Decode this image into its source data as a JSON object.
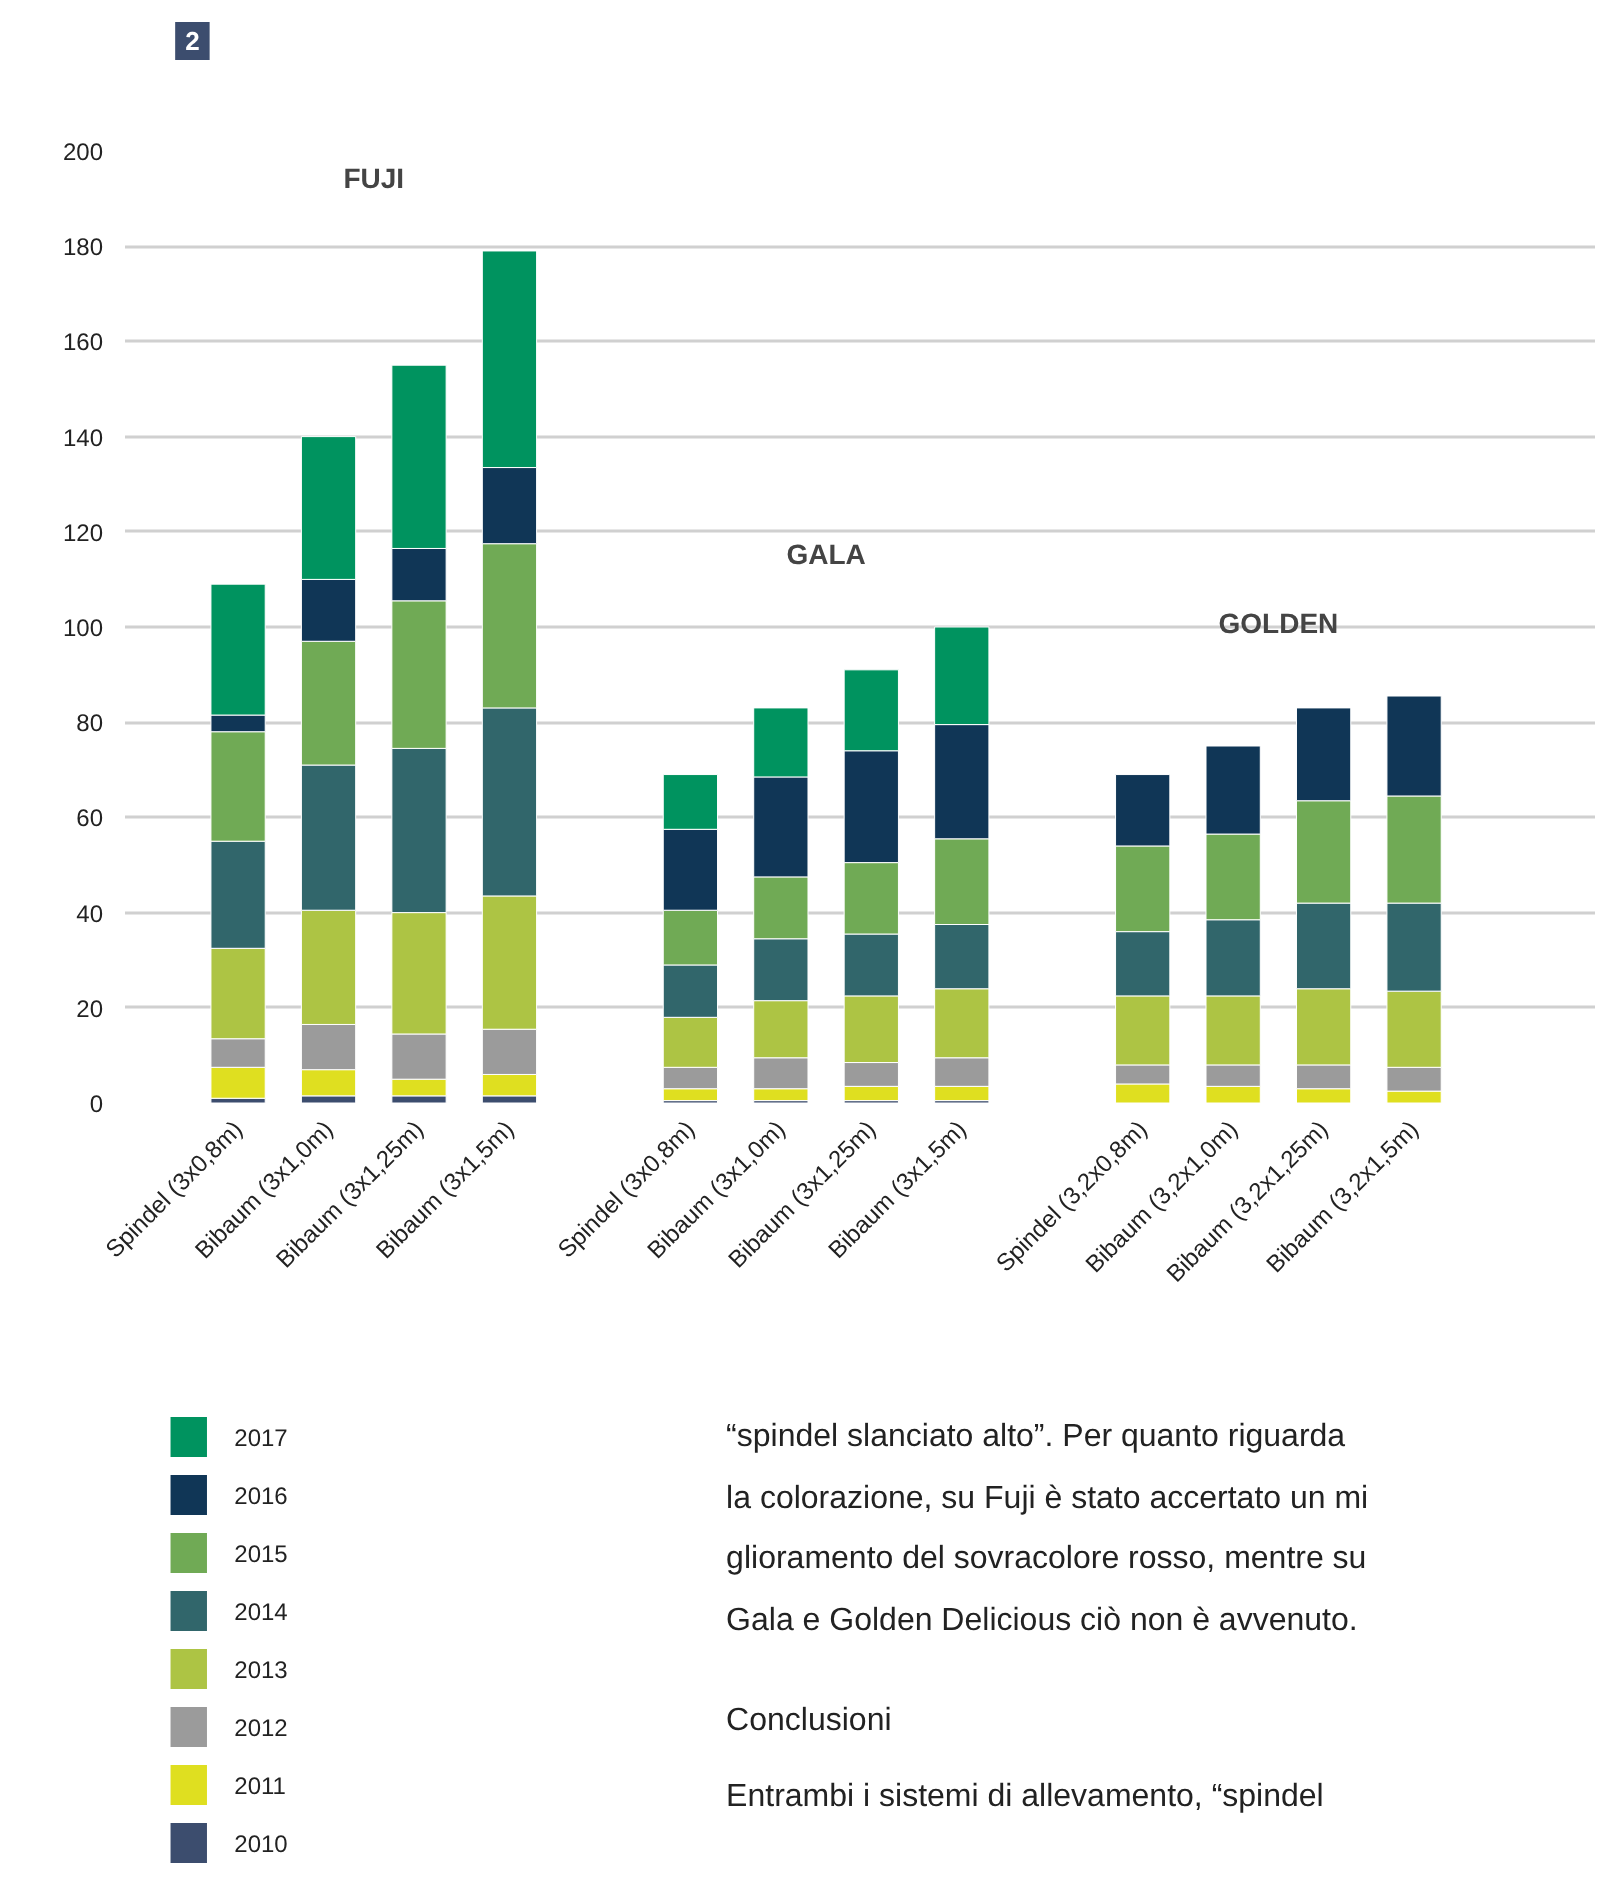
{
  "chart_data": {
    "type": "bar",
    "stacked": true,
    "title": "2",
    "categories": [
      "Spindel (3x0,8m)",
      "Bibaum (3x1,0m)",
      "Bibaum (3x1,25m)",
      "Bibaum (3x1,5m)",
      "Spindel (3x0,8m)",
      "Bibaum (3x1,0m)",
      "Bibaum (3x1,25m)",
      "Bibaum (3x1,5m)",
      "Spindel (3,2x0,8m)",
      "Bibaum (3,2x1,0m)",
      "Bibaum (3,2x1,25m)",
      "Bibaum (3,2x1,5m)"
    ],
    "series": [
      {
        "name": "2010",
        "color": "#3c4d6e",
        "values": [
          1,
          1.5,
          1.5,
          1.5,
          0.5,
          0.5,
          0.5,
          0.5,
          null,
          null,
          null,
          null
        ]
      },
      {
        "name": "2011",
        "color": "#dfdf20",
        "values": [
          6.5,
          5.5,
          3.5,
          4.5,
          2.5,
          2.5,
          3,
          3,
          4,
          3.5,
          3,
          2.5
        ]
      },
      {
        "name": "2012",
        "color": "#9b9b9b",
        "values": [
          6,
          9.5,
          9.5,
          9.5,
          4.5,
          6.5,
          5,
          6,
          4,
          4.5,
          5,
          5
        ]
      },
      {
        "name": "2013",
        "color": "#adc444",
        "values": [
          19,
          24,
          25.5,
          28,
          10.5,
          12,
          14,
          14.5,
          14.5,
          14.5,
          16,
          16
        ]
      },
      {
        "name": "2014",
        "color": "#31666b",
        "values": [
          22.5,
          30.5,
          34.5,
          39.5,
          11,
          13,
          13,
          13.5,
          13.5,
          16,
          18,
          18.5
        ]
      },
      {
        "name": "2015",
        "color": "#70aa55",
        "values": [
          23,
          26,
          31,
          34.5,
          11.5,
          13,
          15,
          18,
          18,
          18,
          21.5,
          22.5
        ]
      },
      {
        "name": "2016",
        "color": "#103656",
        "values": [
          3.5,
          13,
          11,
          16,
          17,
          21,
          23.5,
          24,
          15,
          18.5,
          19.5,
          21
        ]
      },
      {
        "name": "2017",
        "color": "#00935f",
        "values": [
          27.5,
          30,
          38.5,
          45.5,
          11.5,
          14.5,
          17,
          20.5,
          null,
          null,
          null,
          null
        ]
      }
    ],
    "ylim": [
      0,
      200
    ],
    "yticks": [
      0,
      20,
      40,
      60,
      80,
      100,
      120,
      140,
      160,
      180,
      200
    ],
    "grid": "y",
    "legend": "bottom left",
    "annotations": [
      "FUJI",
      "GALA",
      "GOLDEN",
      "“spindel slanciato alto”. Per quanto riguarda",
      "la colorazione, su Fuji è stato accertato un mi",
      "glioramento del sovracolore rosso, mentre su",
      "Gala e Golden Delicious ciò non è avvenuto.",
      "Conclusioni",
      "Entrambi i sistemi di allevamento, “spindel"
    ]
  }
}
